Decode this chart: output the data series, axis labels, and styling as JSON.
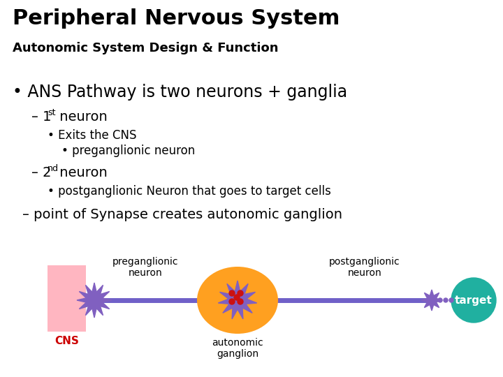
{
  "title": "Peripheral Nervous System",
  "subtitle": "Autonomic System Design & Function",
  "background_color": "#ffffff",
  "title_color": "#000000",
  "subtitle_color": "#000000",
  "diagram": {
    "cns_box_color": "#ffb6c1",
    "cns_text_color": "#cc0000",
    "neuron_color": "#8060c0",
    "ganglion_ellipse_color": "#ffa020",
    "target_color": "#20b0a0",
    "line_color": "#7060c8",
    "line_width": 5,
    "label_preganglionic": "preganglionic\nneuron",
    "label_ganglion": "autonomic\nganglion",
    "label_postganglionic": "postganglionic\nneuron",
    "label_target": "target",
    "label_cns": "CNS"
  }
}
